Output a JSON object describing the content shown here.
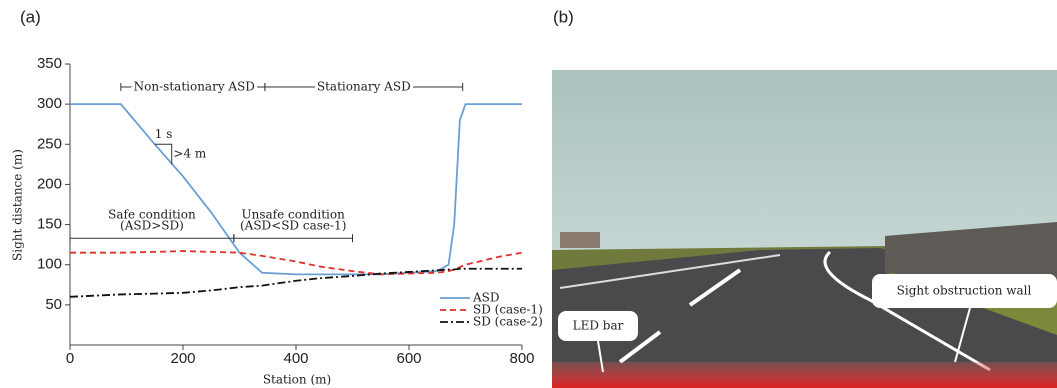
{
  "chart_data": {
    "type": "line",
    "panel_label": "(a)",
    "x_label": "Station (m)",
    "y_label": "Sight distance (m)",
    "x": [
      0,
      90,
      150,
      200,
      250,
      300,
      340,
      400,
      440,
      500,
      550,
      600,
      650,
      670,
      680,
      690,
      700,
      760,
      800
    ],
    "series": [
      {
        "name": "ASD",
        "color": "#6a9fd4",
        "dash": "solid",
        "values": [
          300,
          300,
          250,
          210,
          165,
          115,
          90,
          88,
          88,
          88,
          88,
          90,
          92,
          100,
          150,
          280,
          300,
          300,
          300
        ]
      },
      {
        "name": "SD (case-1)",
        "color": "#e0302a",
        "dash": "dashed",
        "values": [
          115,
          115,
          116,
          117,
          116,
          115,
          111,
          104,
          98,
          92,
          88,
          89,
          90,
          92,
          94,
          97,
          100,
          110,
          115
        ]
      },
      {
        "name": "SD (case-2)",
        "color": "#111111",
        "dash": "dashdot",
        "values": [
          60,
          63,
          64,
          65,
          68,
          72,
          74,
          80,
          83,
          86,
          89,
          91,
          93,
          94,
          94,
          95,
          95,
          95,
          95
        ]
      }
    ],
    "xlim": [
      0,
      800
    ],
    "xticks": [
      0,
      200,
      400,
      600,
      800
    ],
    "ylim": [
      0,
      350
    ],
    "yticks": [
      50,
      100,
      150,
      200,
      250,
      300,
      350
    ],
    "legend": "lower right",
    "annotations": [
      "Non-stationary ASD",
      "Stationary ASD",
      "1 s",
      ">4 m",
      "Safe condition",
      "(ASD>SD)",
      "Unsafe condition",
      "(ASD<SD case-1)"
    ]
  },
  "panel_b": {
    "label": "(b)",
    "annotations": [
      "Sight obstruction wall",
      "LED bar"
    ]
  }
}
